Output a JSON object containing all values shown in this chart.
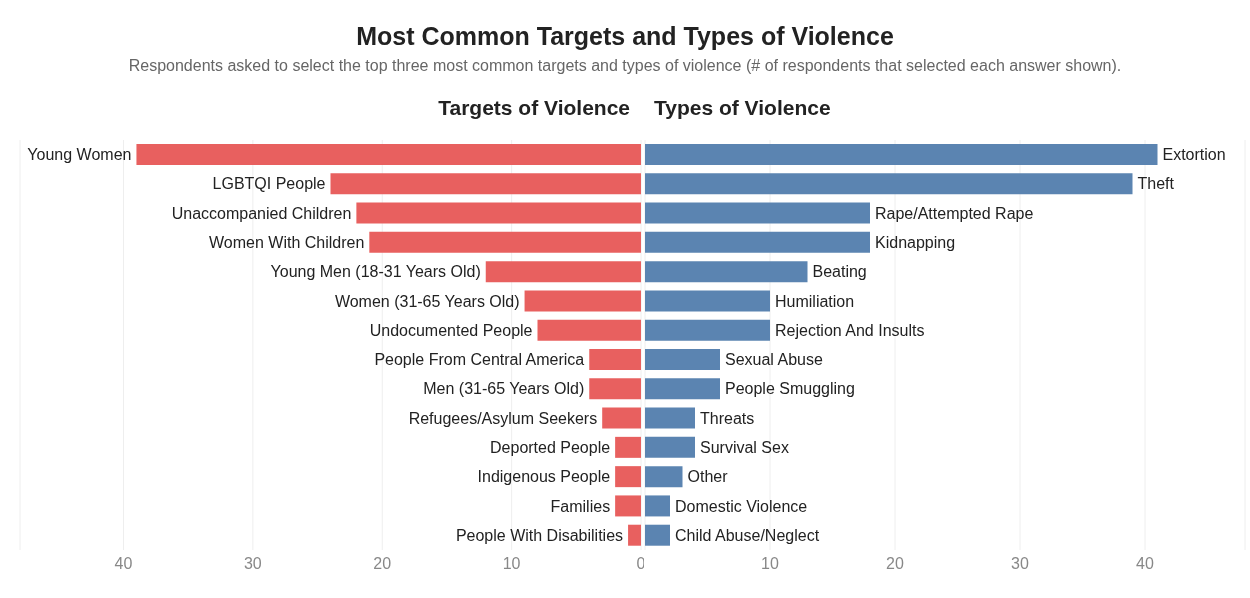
{
  "chart_data": [
    {
      "type": "other",
      "title": "Most Common Targets and Types of Violence",
      "subtitle": "Respondents asked to select the top three most common targets and types of violence (# of respondents that selected each answer shown)."
    },
    {
      "type": "bar",
      "orientation": "horizontal",
      "title": "Targets of Violence",
      "categories": [
        "Young Women",
        "LGBTQI People",
        "Unaccompanied Children",
        "Women With Children",
        "Young Men (18-31 Years Old)",
        "Women (31-65 Years Old)",
        "Undocumented People",
        "People From Central America",
        "Men (31-65 Years Old)",
        "Refugees/Asylum Seekers",
        "Deported People",
        "Indigenous People",
        "Families",
        "People With Disabilities"
      ],
      "values": [
        39,
        24,
        22,
        21,
        12,
        9,
        8,
        4,
        4,
        3,
        2,
        2,
        2,
        1
      ],
      "color": "#e8605f",
      "xlim": [
        48,
        0
      ],
      "xticks": [
        40,
        30,
        20,
        10,
        0
      ],
      "grid": "x"
    },
    {
      "type": "bar",
      "orientation": "horizontal",
      "title": "Types of Violence",
      "categories": [
        "Extortion",
        "Theft",
        "Rape/Attempted Rape",
        "Kidnapping",
        "Beating",
        "Humiliation",
        "Rejection And Insults",
        "Sexual Abuse",
        "People Smuggling",
        "Threats",
        "Survival Sex",
        "Other",
        "Domestic Violence",
        "Child Abuse/Neglect"
      ],
      "values": [
        41,
        39,
        18,
        18,
        13,
        10,
        10,
        6,
        6,
        4,
        4,
        3,
        2,
        2
      ],
      "color": "#5b84b1",
      "xlim": [
        0,
        48
      ],
      "xticks": [
        10,
        20,
        30,
        40
      ],
      "grid": "x"
    }
  ]
}
